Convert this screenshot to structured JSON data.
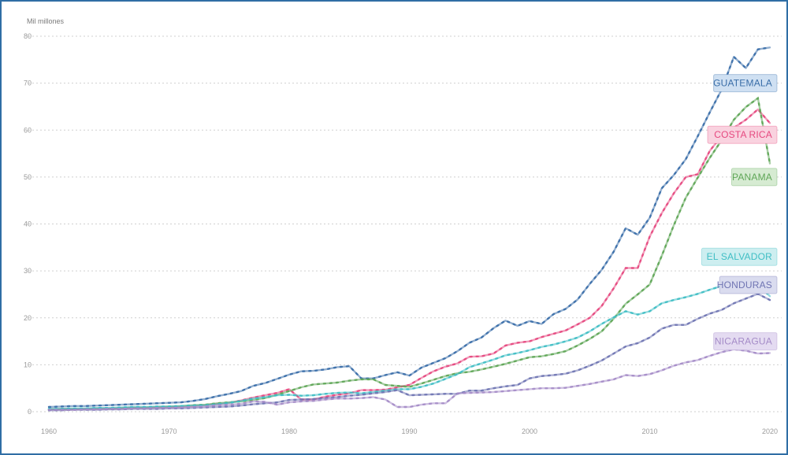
{
  "chart_data": {
    "type": "line",
    "ylabel": "Mil millones",
    "xlim": [
      1960,
      2020
    ],
    "ylim": [
      0,
      80
    ],
    "x_ticks": [
      "1960",
      "1970",
      "1980",
      "1990",
      "2000",
      "2010",
      "2020"
    ],
    "y_ticks": [
      "0",
      "10",
      "20",
      "30",
      "40",
      "50",
      "60",
      "70",
      "80"
    ],
    "grid": true,
    "legend": "direct labels at line ends (right)",
    "series": [
      {
        "name": "GUATEMALA",
        "color": "#3a6ea8",
        "label_fill": "#cfe0f2",
        "label_y": 70,
        "x": [
          1960,
          1961,
          1962,
          1963,
          1964,
          1965,
          1966,
          1967,
          1968,
          1969,
          1970,
          1971,
          1972,
          1973,
          1974,
          1975,
          1976,
          1977,
          1978,
          1979,
          1980,
          1981,
          1982,
          1983,
          1984,
          1985,
          1986,
          1987,
          1988,
          1989,
          1990,
          1991,
          1992,
          1993,
          1994,
          1995,
          1996,
          1997,
          1998,
          1999,
          2000,
          2001,
          2002,
          2003,
          2004,
          2005,
          2006,
          2007,
          2008,
          2009,
          2010,
          2011,
          2012,
          2013,
          2014,
          2015,
          2016,
          2017,
          2018,
          2019,
          2020
        ],
        "values": [
          1.0,
          1.1,
          1.2,
          1.2,
          1.3,
          1.4,
          1.5,
          1.6,
          1.7,
          1.8,
          1.9,
          2.0,
          2.3,
          2.7,
          3.3,
          3.8,
          4.4,
          5.5,
          6.1,
          7.0,
          7.9,
          8.6,
          8.7,
          9.0,
          9.5,
          9.7,
          7.1,
          7.1,
          7.8,
          8.4,
          7.7,
          9.4,
          10.4,
          11.4,
          12.9,
          14.7,
          15.8,
          17.8,
          19.4,
          18.3,
          19.3,
          18.7,
          20.8,
          21.9,
          23.9,
          27.2,
          30.2,
          34.1,
          39.1,
          37.7,
          41.3,
          47.6,
          50.4,
          53.8,
          58.7,
          63.8,
          68.7,
          75.6,
          73.2,
          77.2,
          77.6
        ]
      },
      {
        "name": "COSTA RICA",
        "color": "#e6487f",
        "label_fill": "#f9d2df",
        "label_y": 59,
        "x": [
          1960,
          1961,
          1962,
          1963,
          1964,
          1965,
          1966,
          1967,
          1968,
          1969,
          1970,
          1971,
          1972,
          1973,
          1974,
          1975,
          1976,
          1977,
          1978,
          1979,
          1980,
          1981,
          1982,
          1983,
          1984,
          1985,
          1986,
          1987,
          1988,
          1989,
          1990,
          1991,
          1992,
          1993,
          1994,
          1995,
          1996,
          1997,
          1998,
          1999,
          2000,
          2001,
          2002,
          2003,
          2004,
          2005,
          2006,
          2007,
          2008,
          2009,
          2010,
          2011,
          2012,
          2013,
          2014,
          2015,
          2016,
          2017,
          2018,
          2019,
          2020
        ],
        "values": [
          0.5,
          0.5,
          0.5,
          0.6,
          0.6,
          0.6,
          0.7,
          0.8,
          0.8,
          0.9,
          1.0,
          1.0,
          1.2,
          1.4,
          1.7,
          1.9,
          2.4,
          3.0,
          3.5,
          4.0,
          4.8,
          2.6,
          2.6,
          3.2,
          3.6,
          3.9,
          4.6,
          4.6,
          4.7,
          5.2,
          5.7,
          7.2,
          8.6,
          9.6,
          10.3,
          11.7,
          11.8,
          12.4,
          14.1,
          14.7,
          15.0,
          15.9,
          16.6,
          17.3,
          18.6,
          20.0,
          22.5,
          26.3,
          30.6,
          30.6,
          37.3,
          42.3,
          46.5,
          50.0,
          50.6,
          55.6,
          58.8,
          60.5,
          62.2,
          64.4,
          61.5
        ]
      },
      {
        "name": "PANAMA",
        "color": "#5fa657",
        "label_fill": "#d6ebd2",
        "label_y": 50,
        "x": [
          1960,
          1961,
          1962,
          1963,
          1964,
          1965,
          1966,
          1967,
          1968,
          1969,
          1970,
          1971,
          1972,
          1973,
          1974,
          1975,
          1976,
          1977,
          1978,
          1979,
          1980,
          1981,
          1982,
          1983,
          1984,
          1985,
          1986,
          1987,
          1988,
          1989,
          1990,
          1991,
          1992,
          1993,
          1994,
          1995,
          1996,
          1997,
          1998,
          1999,
          2000,
          2001,
          2002,
          2003,
          2004,
          2005,
          2006,
          2007,
          2008,
          2009,
          2010,
          2011,
          2012,
          2013,
          2014,
          2015,
          2016,
          2017,
          2018,
          2019,
          2020
        ],
        "values": [
          0.5,
          0.6,
          0.6,
          0.6,
          0.7,
          0.7,
          0.8,
          0.9,
          0.9,
          1.0,
          1.1,
          1.2,
          1.4,
          1.5,
          1.8,
          2.0,
          2.2,
          2.5,
          2.9,
          3.6,
          4.4,
          5.2,
          5.8,
          6.0,
          6.2,
          6.6,
          6.9,
          6.9,
          5.7,
          5.5,
          5.3,
          6.0,
          6.8,
          7.6,
          8.2,
          8.5,
          9.0,
          9.6,
          10.2,
          10.9,
          11.6,
          11.8,
          12.3,
          12.9,
          14.1,
          15.5,
          17.1,
          19.8,
          23.0,
          25.0,
          27.1,
          33.2,
          39.7,
          45.6,
          49.9,
          54.1,
          57.9,
          62.2,
          64.9,
          66.8,
          52.9
        ]
      },
      {
        "name": "EL SALVADOR",
        "color": "#3fbec4",
        "label_fill": "#cdeef0",
        "label_y": 33,
        "x": [
          1960,
          1961,
          1962,
          1963,
          1964,
          1965,
          1966,
          1967,
          1968,
          1969,
          1970,
          1971,
          1972,
          1973,
          1974,
          1975,
          1976,
          1977,
          1978,
          1979,
          1980,
          1981,
          1982,
          1983,
          1984,
          1985,
          1986,
          1987,
          1988,
          1989,
          1990,
          1991,
          1992,
          1993,
          1994,
          1995,
          1996,
          1997,
          1998,
          1999,
          2000,
          2001,
          2002,
          2003,
          2004,
          2005,
          2006,
          2007,
          2008,
          2009,
          2010,
          2011,
          2012,
          2013,
          2014,
          2015,
          2016,
          2017,
          2018,
          2019,
          2020
        ],
        "values": [
          0.6,
          0.6,
          0.7,
          0.7,
          0.8,
          0.8,
          0.9,
          1.0,
          1.0,
          1.1,
          1.1,
          1.2,
          1.3,
          1.4,
          1.6,
          1.9,
          2.3,
          2.8,
          3.1,
          3.5,
          3.6,
          3.4,
          3.5,
          3.8,
          4.0,
          4.1,
          3.9,
          4.2,
          4.5,
          4.8,
          4.8,
          5.3,
          6.0,
          7.0,
          8.0,
          9.5,
          10.3,
          11.1,
          12.0,
          12.5,
          13.1,
          13.8,
          14.3,
          15.0,
          15.8,
          17.1,
          18.7,
          20.1,
          21.4,
          20.7,
          21.4,
          23.1,
          23.8,
          24.4,
          25.1,
          26.0,
          26.8,
          27.0,
          26.1,
          27.0,
          24.6
        ]
      },
      {
        "name": "HONDURAS",
        "color": "#6f74b3",
        "label_fill": "#dadcef",
        "label_y": 27,
        "x": [
          1960,
          1961,
          1962,
          1963,
          1964,
          1965,
          1966,
          1967,
          1968,
          1969,
          1970,
          1971,
          1972,
          1973,
          1974,
          1975,
          1976,
          1977,
          1978,
          1979,
          1980,
          1981,
          1982,
          1983,
          1984,
          1985,
          1986,
          1987,
          1988,
          1989,
          1990,
          1991,
          1992,
          1993,
          1994,
          1995,
          1996,
          1997,
          1998,
          1999,
          2000,
          2001,
          2002,
          2003,
          2004,
          2005,
          2006,
          2007,
          2008,
          2009,
          2010,
          2011,
          2012,
          2013,
          2014,
          2015,
          2016,
          2017,
          2018,
          2019,
          2020
        ],
        "values": [
          0.3,
          0.3,
          0.4,
          0.4,
          0.4,
          0.5,
          0.5,
          0.6,
          0.6,
          0.6,
          0.7,
          0.7,
          0.8,
          0.9,
          1.0,
          1.1,
          1.3,
          1.6,
          1.8,
          2.0,
          2.5,
          2.6,
          2.7,
          2.9,
          3.1,
          3.4,
          3.6,
          3.9,
          4.2,
          4.6,
          3.5,
          3.6,
          3.7,
          3.8,
          3.8,
          4.5,
          4.5,
          5.0,
          5.4,
          5.7,
          7.1,
          7.6,
          7.8,
          8.1,
          8.8,
          9.8,
          10.9,
          12.4,
          13.9,
          14.6,
          15.8,
          17.7,
          18.5,
          18.5,
          19.8,
          20.9,
          21.7,
          23.1,
          24.1,
          25.1,
          23.8
        ]
      },
      {
        "name": "NICARAGUA",
        "color": "#a58cc8",
        "label_fill": "#e4dbf1",
        "label_y": 15,
        "x": [
          1960,
          1961,
          1962,
          1963,
          1964,
          1965,
          1966,
          1967,
          1968,
          1969,
          1970,
          1971,
          1972,
          1973,
          1974,
          1975,
          1976,
          1977,
          1978,
          1979,
          1980,
          1981,
          1982,
          1983,
          1984,
          1985,
          1986,
          1987,
          1988,
          1989,
          1990,
          1991,
          1992,
          1993,
          1994,
          1995,
          1996,
          1997,
          1998,
          1999,
          2000,
          2001,
          2002,
          2003,
          2004,
          2005,
          2006,
          2007,
          2008,
          2009,
          2010,
          2011,
          2012,
          2013,
          2014,
          2015,
          2016,
          2017,
          2018,
          2019,
          2020
        ],
        "values": [
          0.4,
          0.4,
          0.4,
          0.5,
          0.5,
          0.6,
          0.6,
          0.7,
          0.7,
          0.8,
          0.8,
          0.9,
          1.0,
          1.1,
          1.4,
          1.5,
          1.7,
          2.2,
          2.1,
          1.5,
          2.0,
          2.2,
          2.3,
          2.6,
          2.8,
          2.8,
          2.9,
          3.1,
          2.6,
          1.0,
          1.0,
          1.5,
          1.8,
          1.8,
          3.9,
          4.0,
          4.1,
          4.2,
          4.4,
          4.6,
          4.8,
          5.0,
          5.0,
          5.1,
          5.5,
          5.9,
          6.4,
          6.9,
          7.8,
          7.6,
          8.0,
          8.8,
          9.8,
          10.5,
          11.0,
          11.9,
          12.7,
          13.3,
          13.0,
          12.4,
          12.5
        ]
      }
    ]
  }
}
